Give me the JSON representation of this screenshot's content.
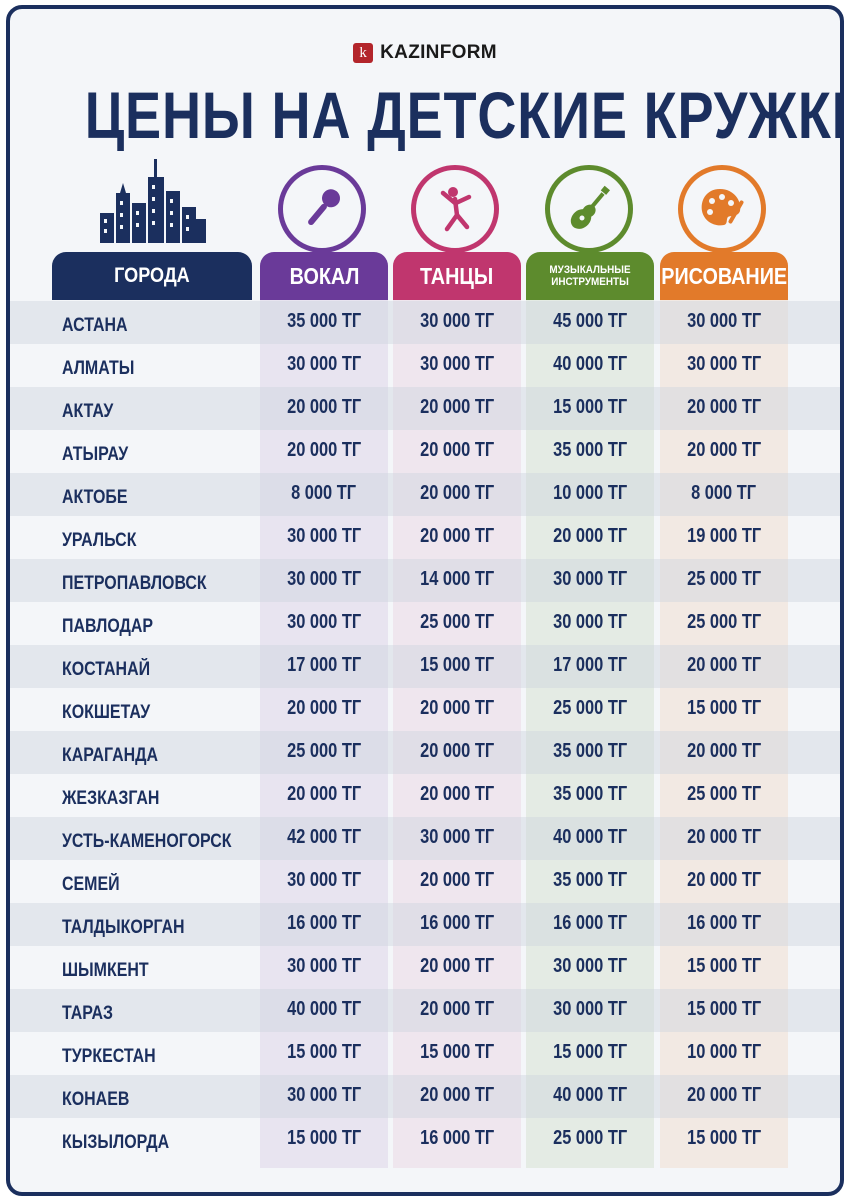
{
  "brand": {
    "name": "KAZINFORM",
    "mark": "k",
    "color": "#b3252b"
  },
  "title": "ЦЕНЫ НА ДЕТСКИЕ КРУЖКИ",
  "colors": {
    "navy": "#1b2f5e",
    "vocal": "#6a3a99",
    "dance": "#c0366e",
    "music": "#5d8b2d",
    "drawing": "#e27a2a"
  },
  "table": {
    "headers": {
      "city": "ГОРОДА",
      "vocal": "ВОКАЛ",
      "dance": "ТАНЦЫ",
      "music": "МУЗЫКАЛЬНЫЕ ИНСТРУМЕНТЫ",
      "drawing": "РИСОВАНИЕ"
    },
    "icons": {
      "city": "city-skyline-icon",
      "vocal": "microphone-icon",
      "dance": "dancer-icon",
      "music": "guitar-icon",
      "drawing": "palette-icon"
    },
    "rows": [
      {
        "city": "АСТАНА",
        "vocal": "35 000 ТГ",
        "dance": "30 000 ТГ",
        "music": "45 000 ТГ",
        "drawing": "30 000 ТГ"
      },
      {
        "city": "АЛМАТЫ",
        "vocal": "30 000 ТГ",
        "dance": "30 000 ТГ",
        "music": "40 000 ТГ",
        "drawing": "30 000 ТГ"
      },
      {
        "city": "АКТАУ",
        "vocal": "20 000 ТГ",
        "dance": "20 000 ТГ",
        "music": "15 000 ТГ",
        "drawing": "20 000 ТГ"
      },
      {
        "city": "АТЫРАУ",
        "vocal": "20 000 ТГ",
        "dance": "20 000 ТГ",
        "music": "35 000 ТГ",
        "drawing": "20 000 ТГ"
      },
      {
        "city": "АКТОБЕ",
        "vocal": "8 000 ТГ",
        "dance": "20 000 ТГ",
        "music": "10 000 ТГ",
        "drawing": "8 000 ТГ"
      },
      {
        "city": "УРАЛЬСК",
        "vocal": "30 000 ТГ",
        "dance": "20 000 ТГ",
        "music": "20 000 ТГ",
        "drawing": "19 000 ТГ"
      },
      {
        "city": "ПЕТРОПАВЛОВСК",
        "vocal": "30 000 ТГ",
        "dance": "14 000 ТГ",
        "music": "30 000 ТГ",
        "drawing": "25 000 ТГ"
      },
      {
        "city": "ПАВЛОДАР",
        "vocal": "30 000 ТГ",
        "dance": "25 000 ТГ",
        "music": "30 000 ТГ",
        "drawing": "25 000 ТГ"
      },
      {
        "city": "КОСТАНАЙ",
        "vocal": "17 000 ТГ",
        "dance": "15 000 ТГ",
        "music": "17 000 ТГ",
        "drawing": "20 000 ТГ"
      },
      {
        "city": "КОКШЕТАУ",
        "vocal": "20 000 ТГ",
        "dance": "20 000 ТГ",
        "music": "25 000 ТГ",
        "drawing": "15 000 ТГ"
      },
      {
        "city": "КАРАГАНДА",
        "vocal": "25 000 ТГ",
        "dance": "20 000 ТГ",
        "music": "35 000 ТГ",
        "drawing": "20 000 ТГ"
      },
      {
        "city": "ЖЕЗКАЗГАН",
        "vocal": "20 000 ТГ",
        "dance": "20 000 ТГ",
        "music": "35 000 ТГ",
        "drawing": "25 000 ТГ"
      },
      {
        "city": "УСТЬ-КАМЕНОГОРСК",
        "vocal": "42 000 ТГ",
        "dance": "30 000 ТГ",
        "music": "40 000 ТГ",
        "drawing": "20 000 ТГ"
      },
      {
        "city": "СЕМЕЙ",
        "vocal": "30 000 ТГ",
        "dance": "20 000 ТГ",
        "music": "35 000 ТГ",
        "drawing": "20 000 ТГ"
      },
      {
        "city": "ТАЛДЫКОРГАН",
        "vocal": "16 000 ТГ",
        "dance": "16 000 ТГ",
        "music": "16 000 ТГ",
        "drawing": "16 000 ТГ"
      },
      {
        "city": "ШЫМКЕНТ",
        "vocal": "30 000 ТГ",
        "dance": "20 000 ТГ",
        "music": "30 000 ТГ",
        "drawing": "15 000 ТГ"
      },
      {
        "city": "ТАРАЗ",
        "vocal": "40 000 ТГ",
        "dance": "20 000 ТГ",
        "music": "30 000 ТГ",
        "drawing": "15 000 ТГ"
      },
      {
        "city": "ТУРКЕСТАН",
        "vocal": "15 000 ТГ",
        "dance": "15 000 ТГ",
        "music": "15 000 ТГ",
        "drawing": "10 000 ТГ"
      },
      {
        "city": "КОНАЕВ",
        "vocal": "30 000 ТГ",
        "dance": "20 000 ТГ",
        "music": "40 000 ТГ",
        "drawing": "20 000 ТГ"
      },
      {
        "city": "КЫЗЫЛОРДА",
        "vocal": "15 000 ТГ",
        "dance": "16 000 ТГ",
        "music": "25 000 ТГ",
        "drawing": "15 000 ТГ"
      }
    ]
  }
}
